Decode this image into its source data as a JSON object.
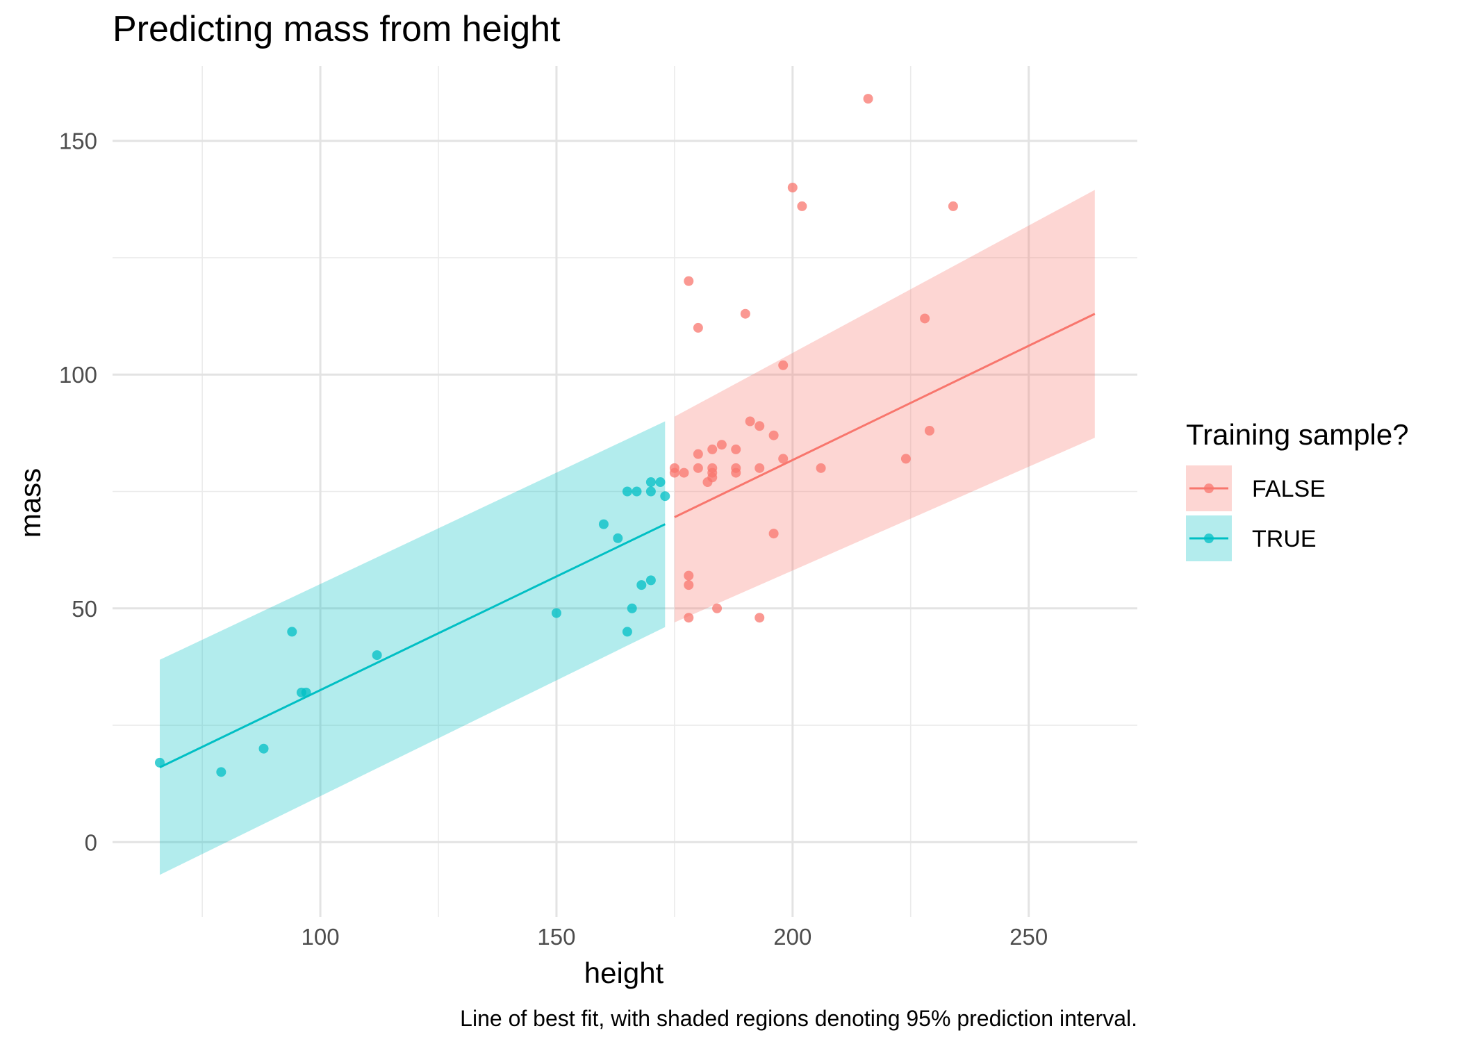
{
  "chart_data": {
    "type": "scatter",
    "title": "Predicting mass from height",
    "xlabel": "height",
    "ylabel": "mass",
    "caption": "Line of best fit, with shaded regions denoting 95% prediction interval.",
    "xlim": [
      56,
      273
    ],
    "ylim": [
      -16,
      166
    ],
    "x_ticks": [
      100,
      150,
      200,
      250
    ],
    "y_ticks": [
      0,
      50,
      100,
      150
    ],
    "grid": true,
    "legend": {
      "title": "Training sample?",
      "position": "right",
      "entries": [
        "FALSE",
        "TRUE"
      ]
    },
    "series": [
      {
        "name": "FALSE",
        "color": "#F8766D",
        "fit": {
          "x": [
            175,
            264
          ],
          "y": [
            69.5,
            113
          ],
          "lower": [
            47,
            86.5
          ],
          "upper": [
            91,
            139.5
          ]
        },
        "points": [
          [
            216,
            159
          ],
          [
            200,
            140
          ],
          [
            202,
            136
          ],
          [
            234,
            136
          ],
          [
            178,
            120
          ],
          [
            190,
            113
          ],
          [
            228,
            112
          ],
          [
            180,
            110
          ],
          [
            198,
            102
          ],
          [
            191,
            90
          ],
          [
            193,
            89
          ],
          [
            229,
            88
          ],
          [
            196,
            87
          ],
          [
            185,
            85
          ],
          [
            183,
            84
          ],
          [
            188,
            84
          ],
          [
            180,
            83
          ],
          [
            198,
            82
          ],
          [
            224,
            82
          ],
          [
            175,
            80
          ],
          [
            180,
            80
          ],
          [
            183,
            80
          ],
          [
            188,
            80
          ],
          [
            193,
            80
          ],
          [
            206,
            80
          ],
          [
            175,
            79
          ],
          [
            177,
            79
          ],
          [
            183,
            79
          ],
          [
            188,
            79
          ],
          [
            183,
            78
          ],
          [
            182,
            77
          ],
          [
            196,
            66
          ],
          [
            178,
            57
          ],
          [
            178,
            55
          ],
          [
            184,
            50
          ],
          [
            178,
            48
          ],
          [
            193,
            48
          ]
        ]
      },
      {
        "name": "TRUE",
        "color": "#00BFC4",
        "fit": {
          "x": [
            66,
            173
          ],
          "y": [
            16,
            68
          ],
          "lower": [
            -7,
            46
          ],
          "upper": [
            39,
            90
          ]
        },
        "points": [
          [
            170,
            77
          ],
          [
            172,
            77
          ],
          [
            165,
            75
          ],
          [
            167,
            75
          ],
          [
            170,
            75
          ],
          [
            173,
            74
          ],
          [
            160,
            68
          ],
          [
            163,
            65
          ],
          [
            170,
            56
          ],
          [
            168,
            55
          ],
          [
            166,
            50
          ],
          [
            150,
            49
          ],
          [
            165,
            45
          ],
          [
            94,
            45
          ],
          [
            112,
            40
          ],
          [
            96,
            32
          ],
          [
            97,
            32
          ],
          [
            88,
            20
          ],
          [
            66,
            17
          ],
          [
            79,
            15
          ]
        ]
      }
    ]
  }
}
